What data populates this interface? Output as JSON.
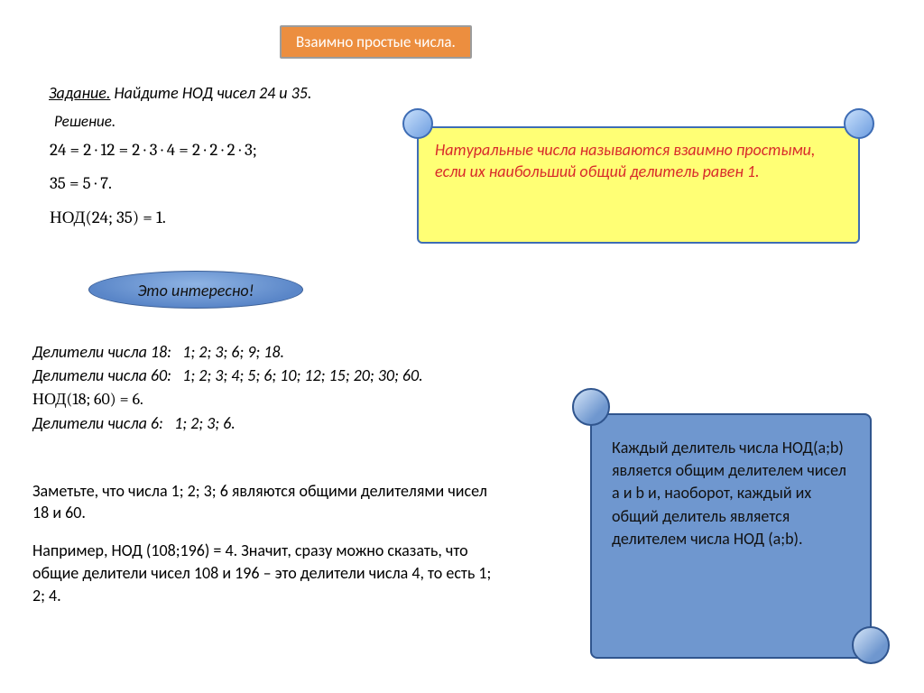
{
  "title": "Взаимно простые числа.",
  "task": {
    "label": "Задание.",
    "text": "Найдите НОД чисел 24 и 35."
  },
  "solution_label": "Решение.",
  "factor24": "24 = 2 · 12 = 2 · 3 · 4 = 2 · 2 · 2 · 3;",
  "factor35": "35 = 5 · 7.",
  "gcd_24_35": "НОД(24; 35) = 1.",
  "definition_note": "Натуральные числа называются взаимно простыми, если их наибольший общий делитель равен 1.",
  "interesting_label": "Это интересно!",
  "divisors": {
    "d18_label": "Делители числа 18:",
    "d18_vals": "1; 2; 3; 6; 9; 18.",
    "d60_label": "Делители числа 60:",
    "d60_vals": "1; 2; 3; 4; 5; 6; 10; 12; 15; 20; 30; 60.",
    "gcd_18_60": "НОД(18; 60) = 6.",
    "d6_label": "Делители числа 6:",
    "d6_vals": "1; 2; 3; 6."
  },
  "observe": "Заметьте, что числа 1; 2; 3; 6 являются общими делителями чисел 18 и 60.",
  "example108": "Например, НОД (108;196) = 4. Значит, сразу можно сказать, что общие делители чисел 108 и 196 – это делители числа 4, то есть 1; 2; 4.",
  "blue_note": "Каждый делитель числа НОД(a;b) является общим делителем чисел a и b и, наоборот, каждый их общий делитель является делителем числа НОД (a;b).",
  "colors": {
    "title_bg": "#ec8e3f",
    "title_border": "#9c9c9c",
    "note_bg": "#ffff75",
    "note_border": "#3e6db5",
    "note_text": "#d82a2a",
    "pill_bg_inner": "#8fb4e4",
    "pill_bg_outer": "#5a86c8",
    "blue_scroll_bg": "#6f97cf",
    "blue_scroll_border": "#30558e"
  },
  "fonts": {
    "body": "Calibri",
    "math": "Cambria Math",
    "base_size_pt": 14,
    "title_size_pt": 13
  }
}
